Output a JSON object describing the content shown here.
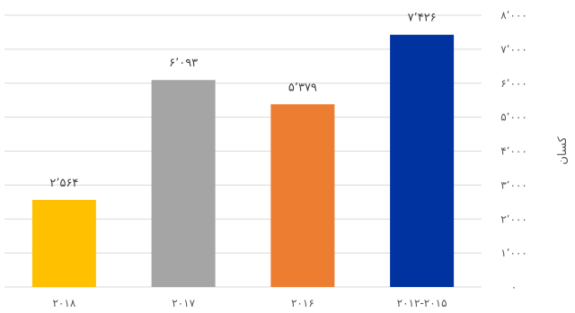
{
  "chart_data": {
    "type": "bar",
    "categories": [
      "۲۰۱۸",
      "۲۰۱۷",
      "۲۰۱۶",
      "۲۰۱۲-۲۰۱۵"
    ],
    "values": [
      2564,
      6093,
      5379,
      7426
    ],
    "value_labels": [
      "۲٬۵۶۴",
      "۶٬۰۹۳",
      "۵٬۳۷۹",
      "۷٬۴۲۶"
    ],
    "colors": [
      "#FFC000",
      "#A5A5A5",
      "#ED7D31",
      "#0033A0"
    ],
    "ylabel": "کسان",
    "ylim": [
      0,
      8000
    ],
    "yticks": [
      0,
      1000,
      2000,
      3000,
      4000,
      5000,
      6000,
      7000,
      8000
    ],
    "ytick_labels": [
      "۰",
      "۱٬۰۰۰",
      "۲٬۰۰۰",
      "۳٬۰۰۰",
      "۴٬۰۰۰",
      "۵٬۰۰۰",
      "۶٬۰۰۰",
      "۷٬۰۰۰",
      "۸٬۰۰۰"
    ],
    "y_axis_side": "right",
    "grid": true,
    "gridline_color": "#D9D9D9"
  }
}
